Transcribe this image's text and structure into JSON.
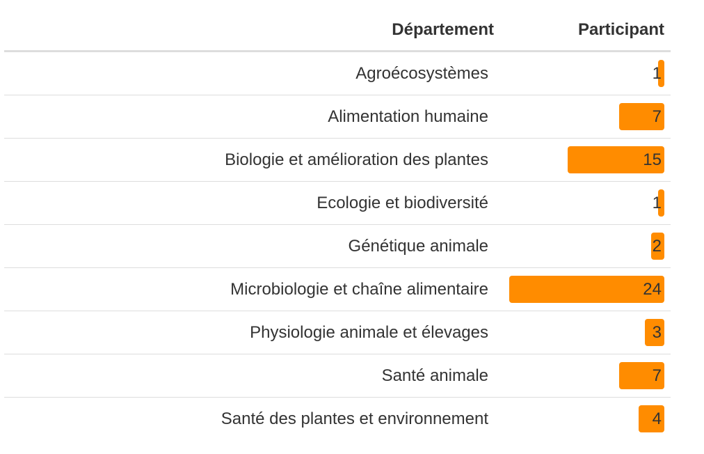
{
  "chart_data": {
    "type": "table",
    "columns": [
      "Département",
      "Participant"
    ],
    "bar_color": "#ff8c00",
    "xlim": [
      0,
      24
    ],
    "rows": [
      {
        "label": "Agroécosystèmes",
        "value": 1
      },
      {
        "label": "Alimentation humaine",
        "value": 7
      },
      {
        "label": "Biologie et amélioration des plantes",
        "value": 15
      },
      {
        "label": "Ecologie et biodiversité",
        "value": 1
      },
      {
        "label": "Génétique animale",
        "value": 2
      },
      {
        "label": "Microbiologie et chaîne alimentaire",
        "value": 24
      },
      {
        "label": "Physiologie animale et élevages",
        "value": 3
      },
      {
        "label": "Santé animale",
        "value": 7
      },
      {
        "label": "Santé des plantes et environnement",
        "value": 4
      }
    ]
  }
}
